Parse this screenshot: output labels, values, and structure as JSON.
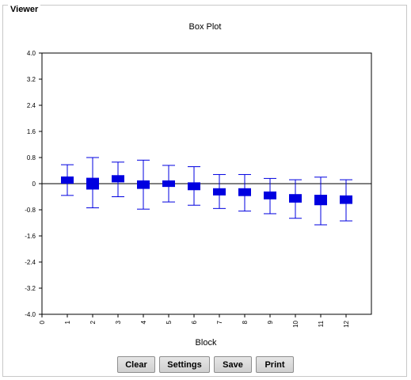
{
  "window": {
    "title": "Viewer"
  },
  "buttons": {
    "clear": "Clear",
    "settings": "Settings",
    "save": "Save",
    "print": "Print"
  },
  "chart_data": {
    "type": "box",
    "title": "Box Plot",
    "xlabel": "Block",
    "ylabel": "",
    "ylim": [
      -4.0,
      4.0
    ],
    "yticks": [
      "4.0",
      "3.2",
      "2.4",
      "1.6",
      "0.8",
      "0",
      "-0.8",
      "-1.6",
      "-2.4",
      "-3.2",
      "-4.0"
    ],
    "ytick_values": [
      4.0,
      3.2,
      2.4,
      1.6,
      0.8,
      0,
      -0.8,
      -1.6,
      -2.4,
      -3.2,
      -4.0
    ],
    "xlim": [
      0,
      13
    ],
    "xticks": [
      "0",
      "1",
      "2",
      "3",
      "4",
      "5",
      "6",
      "7",
      "8",
      "9",
      "10",
      "11",
      "12"
    ],
    "reference_line_y": 0,
    "color": "#0000e0",
    "boxes": [
      {
        "x": 1,
        "whisker_low": -0.36,
        "q1": 0.0,
        "q3": 0.22,
        "whisker_high": 0.58
      },
      {
        "x": 2,
        "whisker_low": -0.74,
        "q1": -0.18,
        "q3": 0.18,
        "whisker_high": 0.8
      },
      {
        "x": 3,
        "whisker_low": -0.4,
        "q1": 0.04,
        "q3": 0.26,
        "whisker_high": 0.66
      },
      {
        "x": 4,
        "whisker_low": -0.78,
        "q1": -0.16,
        "q3": 0.1,
        "whisker_high": 0.72
      },
      {
        "x": 5,
        "whisker_low": -0.56,
        "q1": -0.1,
        "q3": 0.1,
        "whisker_high": 0.56
      },
      {
        "x": 6,
        "whisker_low": -0.66,
        "q1": -0.2,
        "q3": 0.04,
        "whisker_high": 0.52
      },
      {
        "x": 7,
        "whisker_low": -0.76,
        "q1": -0.36,
        "q3": -0.14,
        "whisker_high": 0.28
      },
      {
        "x": 8,
        "whisker_low": -0.84,
        "q1": -0.38,
        "q3": -0.14,
        "whisker_high": 0.28
      },
      {
        "x": 9,
        "whisker_low": -0.92,
        "q1": -0.48,
        "q3": -0.24,
        "whisker_high": 0.16
      },
      {
        "x": 10,
        "whisker_low": -1.06,
        "q1": -0.58,
        "q3": -0.32,
        "whisker_high": 0.12
      },
      {
        "x": 11,
        "whisker_low": -1.26,
        "q1": -0.66,
        "q3": -0.34,
        "whisker_high": 0.2
      },
      {
        "x": 12,
        "whisker_low": -1.14,
        "q1": -0.62,
        "q3": -0.36,
        "whisker_high": 0.12
      }
    ]
  }
}
